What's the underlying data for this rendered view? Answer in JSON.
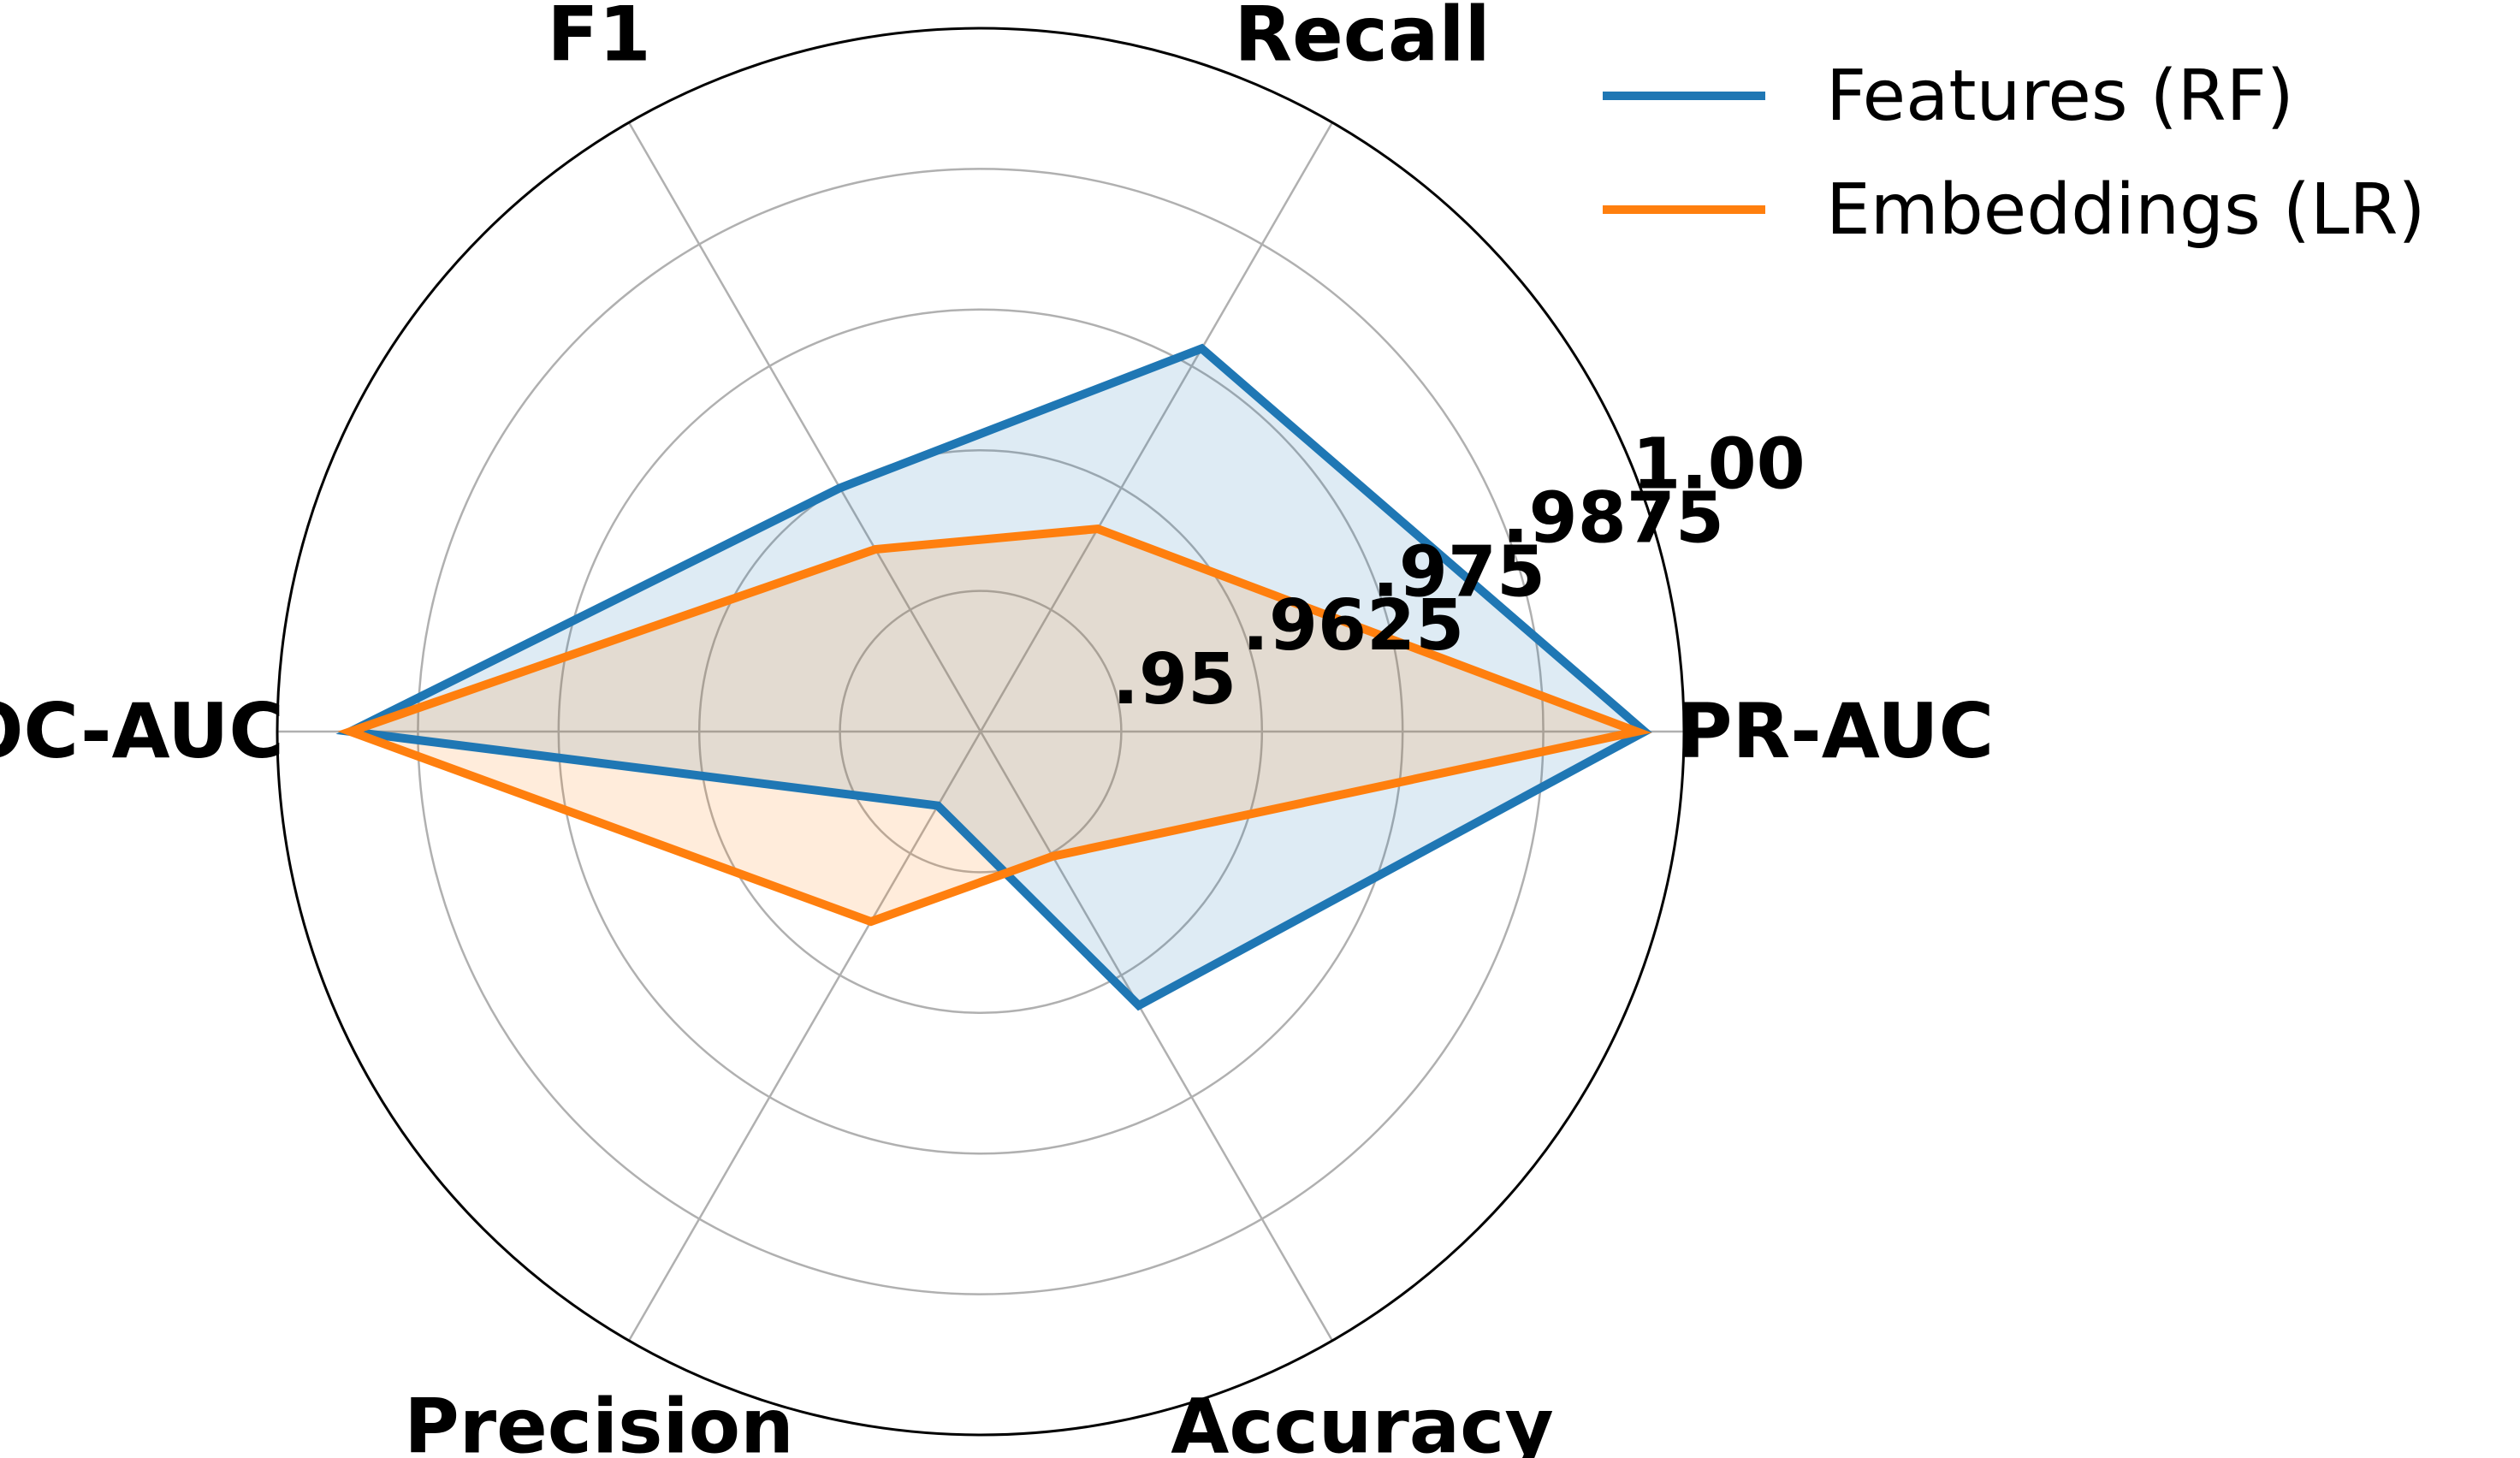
{
  "chart_data": {
    "type": "radar",
    "categories": [
      "PR-AUC",
      "Recall",
      "F1",
      "ROC-AUC",
      "Precision",
      "Accuracy"
    ],
    "radial_ticks": [
      {
        "value": 0.95,
        "label": ".95"
      },
      {
        "value": 0.9625,
        "label": ".9625"
      },
      {
        "value": 0.975,
        "label": ".975"
      },
      {
        "value": 0.9875,
        "label": ".9875"
      },
      {
        "value": 1.0,
        "label": "1.00"
      }
    ],
    "rlim": [
      0.9375,
      1.0
    ],
    "grid": true,
    "legend_position": "top-right",
    "series": [
      {
        "name": "Features (RF)",
        "color": "#1f77b4",
        "values": [
          0.9965,
          0.9768,
          0.9625,
          0.9935,
          0.9451,
          0.9656
        ]
      },
      {
        "name": "Embeddings (LR)",
        "color": "#ff7f0e",
        "values": [
          0.9958,
          0.9583,
          0.9562,
          0.9935,
          0.957,
          0.9503
        ]
      }
    ]
  }
}
